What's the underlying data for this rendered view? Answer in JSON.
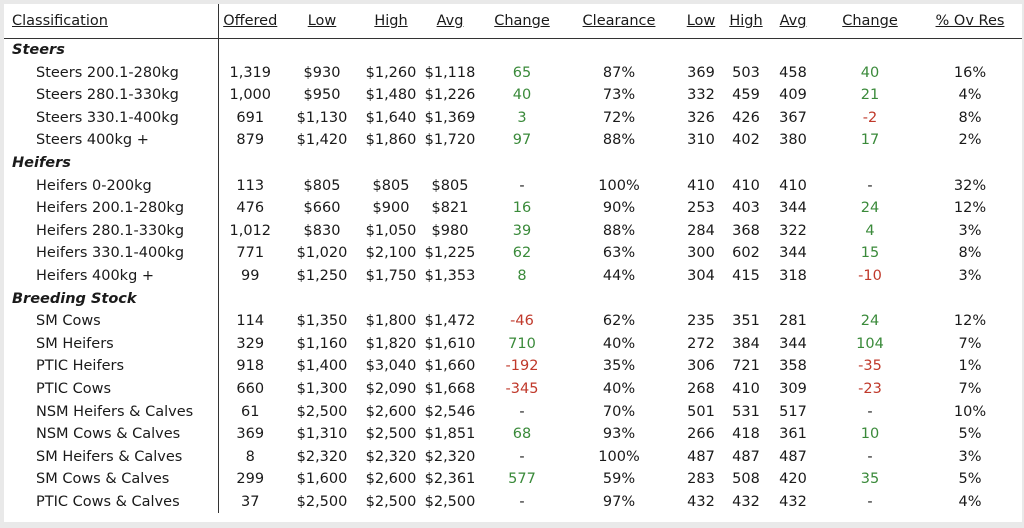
{
  "headers": [
    "Classification",
    "Offered",
    "Low",
    "High",
    "Avg",
    "Change",
    "Clearance",
    "Low",
    "High",
    "Avg",
    "Change",
    "% Ov Res"
  ],
  "colors": {
    "positive": "#3a8a3a",
    "negative": "#c0392b"
  },
  "rows": [
    {
      "section": "Steers"
    },
    {
      "cells": [
        "Steers 200.1-280kg",
        "1,319",
        "$930",
        "$1,260",
        "$1,118",
        "65",
        "87%",
        "369",
        "503",
        "458",
        "40",
        "16%"
      ]
    },
    {
      "cells": [
        "Steers 280.1-330kg",
        "1,000",
        "$950",
        "$1,480",
        "$1,226",
        "40",
        "73%",
        "332",
        "459",
        "409",
        "21",
        "4%"
      ]
    },
    {
      "cells": [
        "Steers 330.1-400kg",
        "691",
        "$1,130",
        "$1,640",
        "$1,369",
        "3",
        "72%",
        "326",
        "426",
        "367",
        "-2",
        "8%"
      ]
    },
    {
      "cells": [
        "Steers 400kg +",
        "879",
        "$1,420",
        "$1,860",
        "$1,720",
        "97",
        "88%",
        "310",
        "402",
        "380",
        "17",
        "2%"
      ]
    },
    {
      "section": "Heifers"
    },
    {
      "cells": [
        "Heifers 0-200kg",
        "113",
        "$805",
        "$805",
        "$805",
        "-",
        "100%",
        "410",
        "410",
        "410",
        "-",
        "32%"
      ]
    },
    {
      "cells": [
        "Heifers 200.1-280kg",
        "476",
        "$660",
        "$900",
        "$821",
        "16",
        "90%",
        "253",
        "403",
        "344",
        "24",
        "12%"
      ]
    },
    {
      "cells": [
        "Heifers 280.1-330kg",
        "1,012",
        "$830",
        "$1,050",
        "$980",
        "39",
        "88%",
        "284",
        "368",
        "322",
        "4",
        "3%"
      ]
    },
    {
      "cells": [
        "Heifers 330.1-400kg",
        "771",
        "$1,020",
        "$2,100",
        "$1,225",
        "62",
        "63%",
        "300",
        "602",
        "344",
        "15",
        "8%"
      ]
    },
    {
      "cells": [
        "Heifers 400kg +",
        "99",
        "$1,250",
        "$1,750",
        "$1,353",
        "8",
        "44%",
        "304",
        "415",
        "318",
        "-10",
        "3%"
      ]
    },
    {
      "section": "Breeding Stock"
    },
    {
      "cells": [
        "SM Cows",
        "114",
        "$1,350",
        "$1,800",
        "$1,472",
        "-46",
        "62%",
        "235",
        "351",
        "281",
        "24",
        "12%"
      ]
    },
    {
      "cells": [
        "SM Heifers",
        "329",
        "$1,160",
        "$1,820",
        "$1,610",
        "710",
        "40%",
        "272",
        "384",
        "344",
        "104",
        "7%"
      ]
    },
    {
      "cells": [
        "PTIC Heifers",
        "918",
        "$1,400",
        "$3,040",
        "$1,660",
        "-192",
        "35%",
        "306",
        "721",
        "358",
        "-35",
        "1%"
      ]
    },
    {
      "cells": [
        "PTIC Cows",
        "660",
        "$1,300",
        "$2,090",
        "$1,668",
        "-345",
        "40%",
        "268",
        "410",
        "309",
        "-23",
        "7%"
      ]
    },
    {
      "cells": [
        "NSM Heifers & Calves",
        "61",
        "$2,500",
        "$2,600",
        "$2,546",
        "-",
        "70%",
        "501",
        "531",
        "517",
        "-",
        "10%"
      ]
    },
    {
      "cells": [
        "NSM Cows & Calves",
        "369",
        "$1,310",
        "$2,500",
        "$1,851",
        "68",
        "93%",
        "266",
        "418",
        "361",
        "10",
        "5%"
      ]
    },
    {
      "cells": [
        "SM Heifers & Calves",
        "8",
        "$2,320",
        "$2,320",
        "$2,320",
        "-",
        "100%",
        "487",
        "487",
        "487",
        "-",
        "3%"
      ]
    },
    {
      "cells": [
        "SM Cows & Calves",
        "299",
        "$1,600",
        "$2,600",
        "$2,361",
        "577",
        "59%",
        "283",
        "508",
        "420",
        "35",
        "5%"
      ]
    },
    {
      "cells": [
        "PTIC Cows & Calves",
        "37",
        "$2,500",
        "$2,500",
        "$2,500",
        "-",
        "97%",
        "432",
        "432",
        "432",
        "-",
        "4%"
      ]
    }
  ]
}
